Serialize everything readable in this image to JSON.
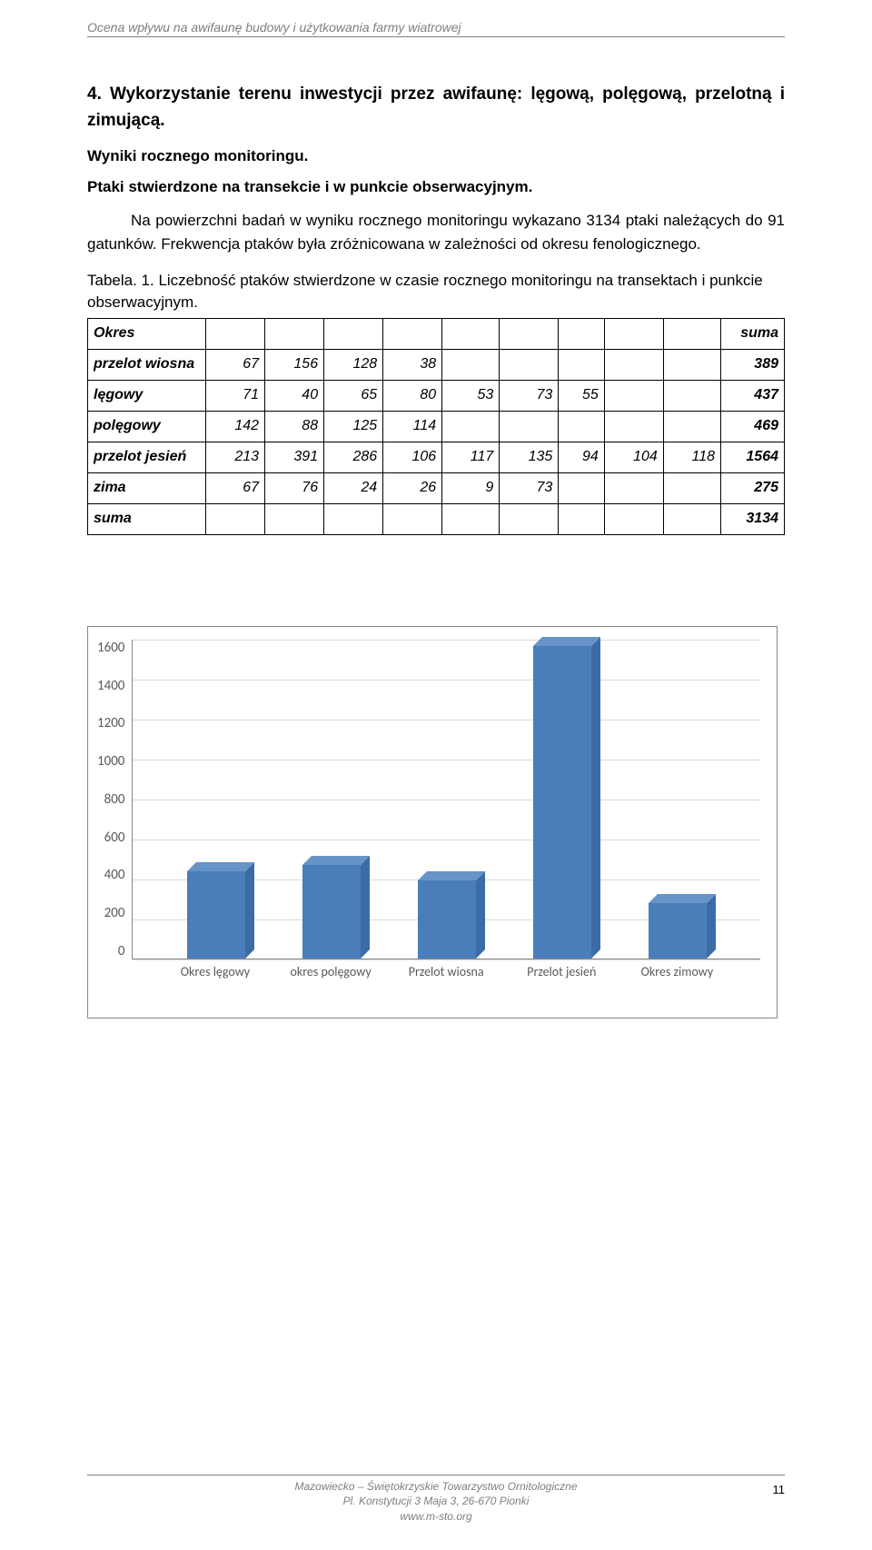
{
  "header": {
    "title": "Ocena wpływu na awifaunę budowy i użytkowania farmy wiatrowej"
  },
  "section": {
    "heading": "4. Wykorzystanie terenu inwestycji przez awifaunę: lęgową, polęgową, przelotną i zimującą.",
    "subheading": "Wyniki rocznego monitoringu.",
    "sub2": "Ptaki stwierdzone na transekcie i w punkcie obserwacyjnym.",
    "para": "Na powierzchni badań w wyniku rocznego monitoringu wykazano 3134 ptaki należących do 91 gatunków. Frekwencja ptaków była zróżnicowana w zależności od okresu fenologicznego."
  },
  "table": {
    "caption": "Tabela. 1. Liczebność ptaków stwierdzone w czasie rocznego monitoringu na transektach i punkcie obserwacyjnym.",
    "header_okres": "Okres",
    "header_suma": "suma",
    "rows": [
      {
        "label": "przelot wiosna",
        "cells": [
          "67",
          "156",
          "128",
          "38",
          "",
          "",
          "",
          "",
          "",
          ""
        ],
        "sum": "389"
      },
      {
        "label": "lęgowy",
        "cells": [
          "71",
          "40",
          "65",
          "80",
          "53",
          "73",
          "55",
          "",
          "",
          ""
        ],
        "sum": "437"
      },
      {
        "label": "polęgowy",
        "cells": [
          "142",
          "88",
          "125",
          "114",
          "",
          "",
          "",
          "",
          "",
          ""
        ],
        "sum": "469"
      },
      {
        "label": "przelot jesień",
        "cells": [
          "213",
          "391",
          "286",
          "106",
          "117",
          "135",
          "94",
          "104",
          "118",
          ""
        ],
        "sum": "1564"
      },
      {
        "label": "zima",
        "cells": [
          "67",
          "76",
          "24",
          "26",
          "9",
          "73",
          "",
          "",
          "",
          ""
        ],
        "sum": "275"
      }
    ],
    "total_label": "suma",
    "total": "3134"
  },
  "chart": {
    "type": "bar-3d",
    "y_ticks": [
      "1600",
      "1400",
      "1200",
      "1000",
      "800",
      "600",
      "400",
      "200",
      "0"
    ],
    "ylim": [
      0,
      1600
    ],
    "categories": [
      "Okres lęgowy",
      "okres polęgowy",
      "Przelot wiosna",
      "Przelot jesień",
      "Okres zimowy"
    ],
    "values": [
      437,
      469,
      389,
      1564,
      275
    ],
    "bar_front_color": "#4a7ebb",
    "bar_top_color": "#6794c8",
    "bar_side_color": "#3c6ca5",
    "grid_color": "#d9d9d9",
    "axis_color": "#888888",
    "background": "#ffffff",
    "axis_label_color": "#595959",
    "axis_fontsize": 15
  },
  "footer": {
    "line1": "Mazowiecko – Świętokrzyskie Towarzystwo Ornitologiczne",
    "line2": "Pl. Konstytucji 3 Maja 3, 26-670 Pionki",
    "line3": "www.m-sto.org",
    "page": "11"
  }
}
